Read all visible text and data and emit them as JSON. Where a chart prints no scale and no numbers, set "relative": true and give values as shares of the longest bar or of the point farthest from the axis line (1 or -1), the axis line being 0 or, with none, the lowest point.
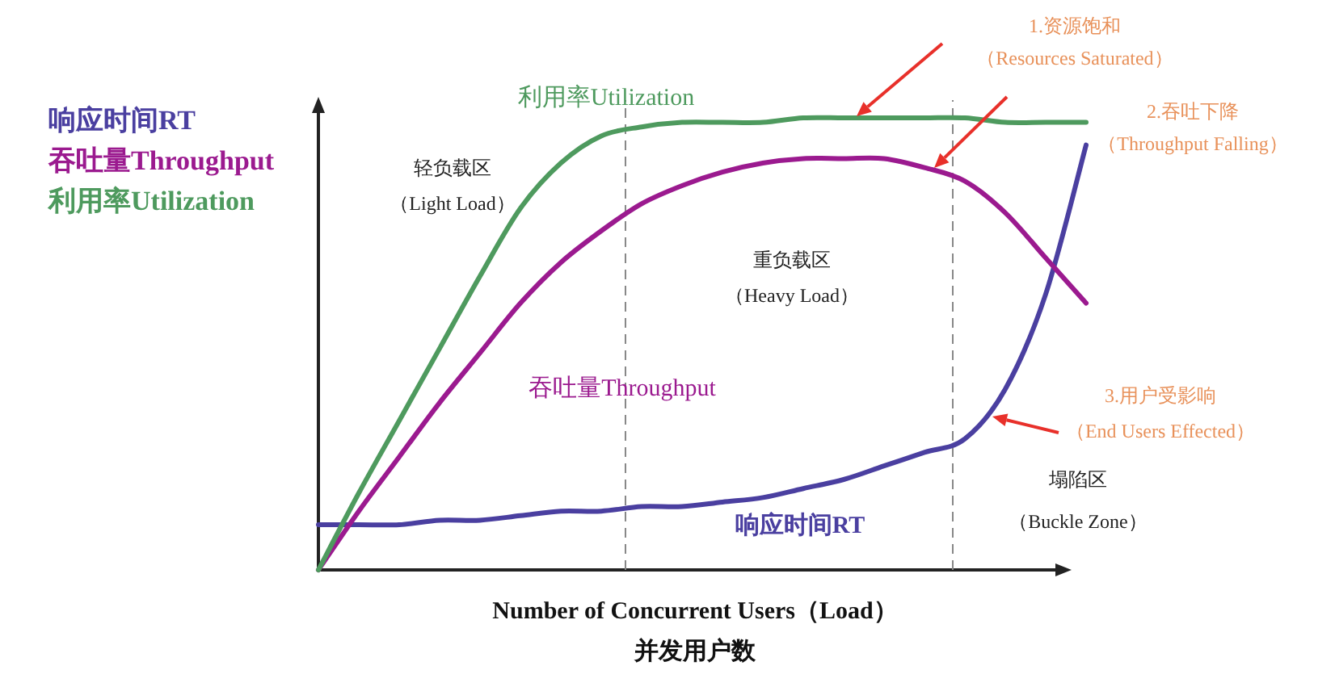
{
  "chart_data": {
    "type": "line",
    "relative": true,
    "categories": [
      null,
      null,
      null,
      null,
      null,
      null,
      null,
      null,
      null,
      null,
      null,
      null,
      null,
      null,
      null,
      null,
      null,
      null,
      null,
      null
    ],
    "xlabel": "Number of Concurrent Users（Load）",
    "series": [
      {
        "name": "响应时间RT",
        "color": "#4a3fa0",
        "values": [
          0.1,
          0.1,
          0.1,
          0.11,
          0.11,
          0.12,
          0.13,
          0.13,
          0.14,
          0.14,
          0.15,
          0.16,
          0.18,
          0.2,
          0.23,
          0.26,
          0.29,
          0.4,
          0.61,
          0.94
        ]
      },
      {
        "name": "吞吐量Throughput",
        "color": "#9b1a8f",
        "values": [
          0,
          0.13,
          0.25,
          0.37,
          0.48,
          0.59,
          0.68,
          0.75,
          0.81,
          0.85,
          0.88,
          0.9,
          0.91,
          0.91,
          0.91,
          0.89,
          0.86,
          0.79,
          0.69,
          0.59
        ]
      },
      {
        "name": "利用率Utilization",
        "color": "#4e9a5e",
        "values": [
          0,
          0.17,
          0.33,
          0.49,
          0.65,
          0.8,
          0.9,
          0.96,
          0.98,
          0.99,
          0.99,
          0.99,
          1,
          1,
          1,
          1,
          1,
          0.99,
          0.99,
          0.99
        ]
      }
    ],
    "legend": "left",
    "grid": false,
    "marker": "none",
    "line_style": "solid",
    "annotations": [
      "轻负载区",
      "（Light Load）",
      "重负载区",
      "（Heavy Load）",
      "塌陷区",
      "（Buckle Zone）",
      "1.资源饱和",
      "（Resources Saturated）",
      "2.吞吐下降",
      "（Throughput Falling）",
      "3.用户受影响",
      "（End Users Effected）",
      "并发用户数"
    ]
  }
}
